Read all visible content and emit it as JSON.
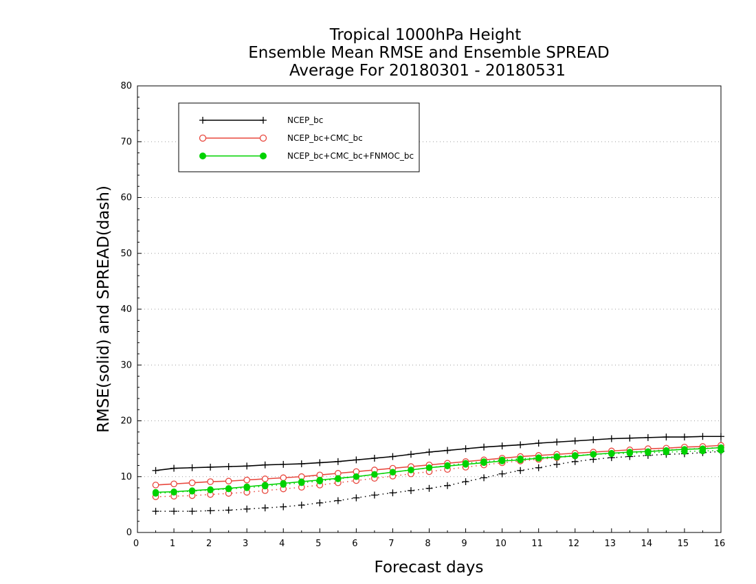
{
  "chart_data": {
    "type": "line",
    "title_lines": [
      "Tropical 1000hPa Height",
      "Ensemble Mean RMSE and Ensemble SPREAD",
      "Average For 20180301 - 20180531"
    ],
    "xlabel": "Forecast days",
    "ylabel": "RMSE(solid) and SPREAD(dash)",
    "xlim": [
      0,
      16
    ],
    "ylim": [
      0,
      80
    ],
    "xticks": [
      "0",
      "1",
      "2",
      "3",
      "4",
      "5",
      "6",
      "7",
      "8",
      "9",
      "10",
      "11",
      "12",
      "13",
      "14",
      "15",
      "16"
    ],
    "yticks": [
      "0",
      "10",
      "20",
      "30",
      "40",
      "50",
      "60",
      "70",
      "80"
    ],
    "grid": "horizontal dotted",
    "legend_position": "top-left",
    "x": [
      0.5,
      1,
      1.5,
      2,
      2.5,
      3,
      3.5,
      4,
      4.5,
      5,
      5.5,
      6,
      6.5,
      7,
      7.5,
      8,
      8.5,
      9,
      9.5,
      10,
      10.5,
      11,
      11.5,
      12,
      12.5,
      13,
      13.5,
      14,
      14.5,
      15,
      15.5,
      16
    ],
    "series": [
      {
        "name": "NCEP_bc",
        "color": "#000000",
        "marker": "plus",
        "rmse": [
          11.1,
          11.5,
          11.6,
          11.7,
          11.8,
          11.9,
          12.1,
          12.2,
          12.3,
          12.5,
          12.7,
          13.0,
          13.3,
          13.6,
          14.0,
          14.4,
          14.7,
          15.0,
          15.3,
          15.5,
          15.7,
          16.0,
          16.2,
          16.4,
          16.6,
          16.8,
          16.9,
          17.0,
          17.1,
          17.1,
          17.2,
          17.2
        ],
        "spread": [
          3.8,
          3.8,
          3.8,
          3.9,
          4.0,
          4.2,
          4.4,
          4.6,
          4.9,
          5.3,
          5.7,
          6.2,
          6.7,
          7.1,
          7.5,
          7.9,
          8.4,
          9.1,
          9.8,
          10.5,
          11.1,
          11.6,
          12.2,
          12.7,
          13.1,
          13.4,
          13.6,
          13.8,
          14.0,
          14.1,
          14.3,
          14.5
        ]
      },
      {
        "name": "NCEP_bc+CMC_bc",
        "color": "#e8463c",
        "marker": "open-circle",
        "rmse": [
          8.5,
          8.7,
          8.9,
          9.1,
          9.2,
          9.4,
          9.6,
          9.8,
          10.0,
          10.3,
          10.6,
          10.9,
          11.2,
          11.5,
          11.8,
          12.1,
          12.4,
          12.7,
          13.0,
          13.3,
          13.6,
          13.8,
          14.0,
          14.2,
          14.4,
          14.6,
          14.8,
          15.0,
          15.1,
          15.3,
          15.4,
          15.6
        ],
        "spread": [
          6.4,
          6.5,
          6.6,
          6.8,
          7.0,
          7.2,
          7.5,
          7.8,
          8.1,
          8.5,
          8.9,
          9.3,
          9.7,
          10.1,
          10.5,
          10.9,
          11.3,
          11.7,
          12.1,
          12.5,
          12.8,
          13.1,
          13.4,
          13.7,
          14.0,
          14.2,
          14.4,
          14.6,
          14.8,
          14.9,
          15.1,
          15.2
        ]
      },
      {
        "name": "NCEP_bc+CMC_bc+FNMOC_bc",
        "color": "#00d200",
        "marker": "filled-circle",
        "rmse": [
          7.2,
          7.3,
          7.5,
          7.7,
          7.9,
          8.2,
          8.5,
          8.8,
          9.1,
          9.4,
          9.7,
          10.0,
          10.4,
          10.8,
          11.2,
          11.6,
          11.9,
          12.2,
          12.5,
          12.8,
          13.0,
          13.3,
          13.5,
          13.7,
          14.0,
          14.2,
          14.4,
          14.5,
          14.7,
          14.9,
          15.0,
          15.2
        ],
        "spread": [
          7.0,
          7.2,
          7.4,
          7.6,
          7.8,
          8.0,
          8.3,
          8.6,
          8.9,
          9.2,
          9.6,
          10.0,
          10.4,
          10.8,
          11.2,
          11.6,
          12.0,
          12.4,
          12.7,
          13.0,
          13.2,
          13.4,
          13.6,
          13.8,
          14.0,
          14.1,
          14.2,
          14.3,
          14.4,
          14.5,
          14.6,
          14.7
        ]
      }
    ]
  }
}
